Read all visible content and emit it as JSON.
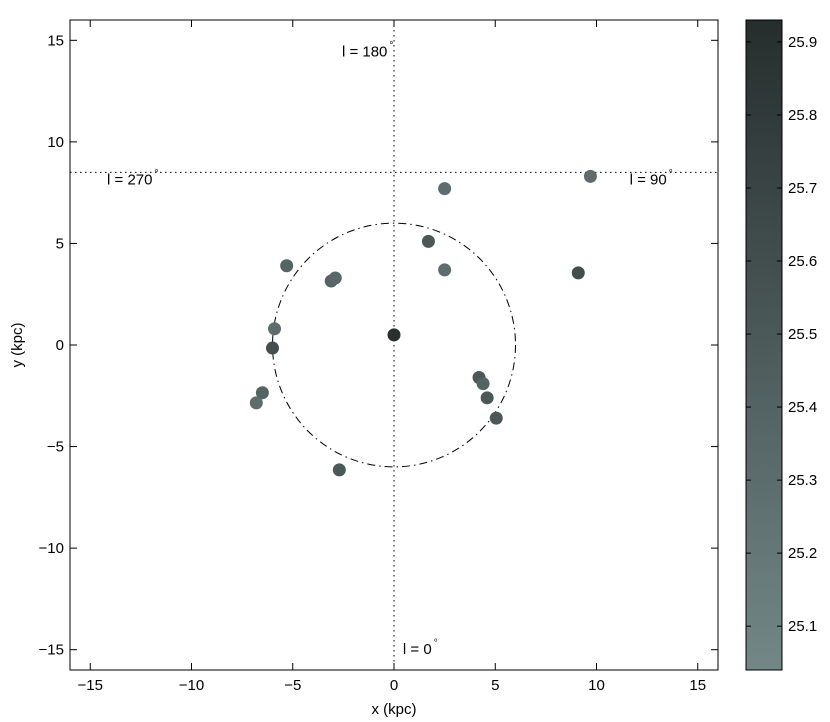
{
  "chart_data": {
    "type": "scatter",
    "xlabel": "x (kpc)",
    "ylabel": "y (kpc)",
    "xlim": [
      -16,
      16
    ],
    "ylim": [
      -16,
      16
    ],
    "x_ticks": [
      -15,
      -10,
      -5,
      0,
      5,
      10,
      15
    ],
    "y_ticks": [
      -15,
      -10,
      -5,
      0,
      5,
      10,
      15
    ],
    "x_tick_labels": [
      "−15",
      "−10",
      "−5",
      "0",
      "5",
      "10",
      "15"
    ],
    "y_tick_labels": [
      "−15",
      "−10",
      "−5",
      "0",
      "5",
      "10",
      "15"
    ],
    "grid": false,
    "reference_lines": {
      "vertical_x": 0,
      "horizontal_y": 8.5,
      "style": "dotted"
    },
    "circle": {
      "center": [
        0,
        0
      ],
      "radius": 6,
      "style": "dash-dot"
    },
    "annotations": [
      {
        "text": "l = 180",
        "degree": "°",
        "x": -1.3,
        "y": 14.2
      },
      {
        "text": "l = 270",
        "degree": "°",
        "x": -12.9,
        "y": 7.9
      },
      {
        "text": "l = 90",
        "degree": "°",
        "x": 12.7,
        "y": 7.9
      },
      {
        "text": "l = 0",
        "degree": "°",
        "x": 1.3,
        "y": -15.2
      }
    ],
    "points": [
      {
        "x": 0.0,
        "y": 0.5,
        "c": 25.9
      },
      {
        "x": 2.5,
        "y": 7.7,
        "c": 25.3
      },
      {
        "x": 9.7,
        "y": 8.3,
        "c": 25.3
      },
      {
        "x": 1.7,
        "y": 5.1,
        "c": 25.5
      },
      {
        "x": 2.5,
        "y": 3.7,
        "c": 25.3
      },
      {
        "x": 9.1,
        "y": 3.55,
        "c": 25.6
      },
      {
        "x": -5.3,
        "y": 3.9,
        "c": 25.4
      },
      {
        "x": -3.1,
        "y": 3.15,
        "c": 25.4
      },
      {
        "x": -2.9,
        "y": 3.3,
        "c": 25.35
      },
      {
        "x": -5.9,
        "y": 0.8,
        "c": 25.3
      },
      {
        "x": -6.0,
        "y": -0.15,
        "c": 25.6
      },
      {
        "x": -6.5,
        "y": -2.35,
        "c": 25.4
      },
      {
        "x": -6.8,
        "y": -2.85,
        "c": 25.3
      },
      {
        "x": 4.2,
        "y": -1.6,
        "c": 25.5
      },
      {
        "x": 4.4,
        "y": -1.9,
        "c": 25.4
      },
      {
        "x": 4.6,
        "y": -2.6,
        "c": 25.5
      },
      {
        "x": 5.05,
        "y": -3.6,
        "c": 25.5
      },
      {
        "x": -2.7,
        "y": -6.15,
        "c": 25.5
      }
    ],
    "colorbar": {
      "min": 25.04,
      "max": 25.93,
      "color_low": "#738787",
      "color_high": "#262d2d",
      "ticks": [
        25.1,
        25.2,
        25.3,
        25.4,
        25.5,
        25.6,
        25.7,
        25.8,
        25.9
      ],
      "tick_labels": [
        "25.1",
        "25.2",
        "25.3",
        "25.4",
        "25.5",
        "25.6",
        "25.7",
        "25.8",
        "25.9"
      ]
    }
  }
}
